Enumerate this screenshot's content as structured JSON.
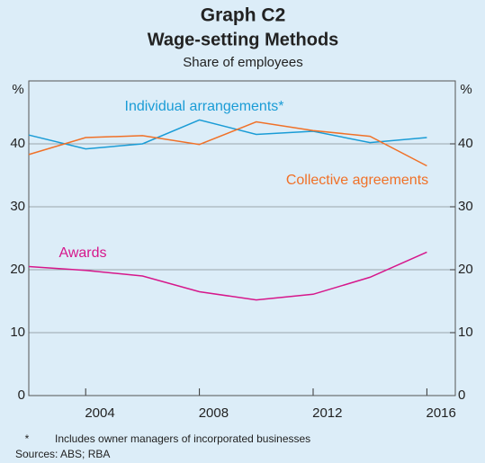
{
  "chart_data": {
    "type": "line",
    "title": "Graph C2",
    "subtitle": "Wage-setting Methods",
    "description": "Share of employees",
    "y_unit_left": "%",
    "y_unit_right": "%",
    "x": [
      2002,
      2004,
      2006,
      2008,
      2010,
      2012,
      2014,
      2016
    ],
    "series": [
      {
        "name": "Individual arrangements*",
        "color": "#1a9cd6",
        "values": [
          41.4,
          39.2,
          40.0,
          43.8,
          41.5,
          42.0,
          40.2,
          41.0
        ]
      },
      {
        "name": "Collective agreements",
        "color": "#f07128",
        "values": [
          38.3,
          41.0,
          41.3,
          39.9,
          43.5,
          42.1,
          41.2,
          36.5
        ]
      },
      {
        "name": "Awards",
        "color": "#d6178b",
        "values": [
          20.5,
          19.9,
          19.0,
          16.5,
          15.2,
          16.1,
          18.8,
          22.8
        ]
      }
    ],
    "xlim": [
      2002,
      2017
    ],
    "xticks": [
      2004,
      2008,
      2012,
      2016
    ],
    "ylim": [
      0,
      50
    ],
    "yticks": [
      0,
      10,
      20,
      30,
      40
    ],
    "y2lim": [
      0,
      50
    ],
    "y2ticks": [
      0,
      10,
      20,
      30,
      40
    ],
    "grid": true,
    "footnote": "Includes owner managers of incorporated businesses",
    "footnote_marker": "*",
    "sources": "Sources: ABS; RBA"
  }
}
